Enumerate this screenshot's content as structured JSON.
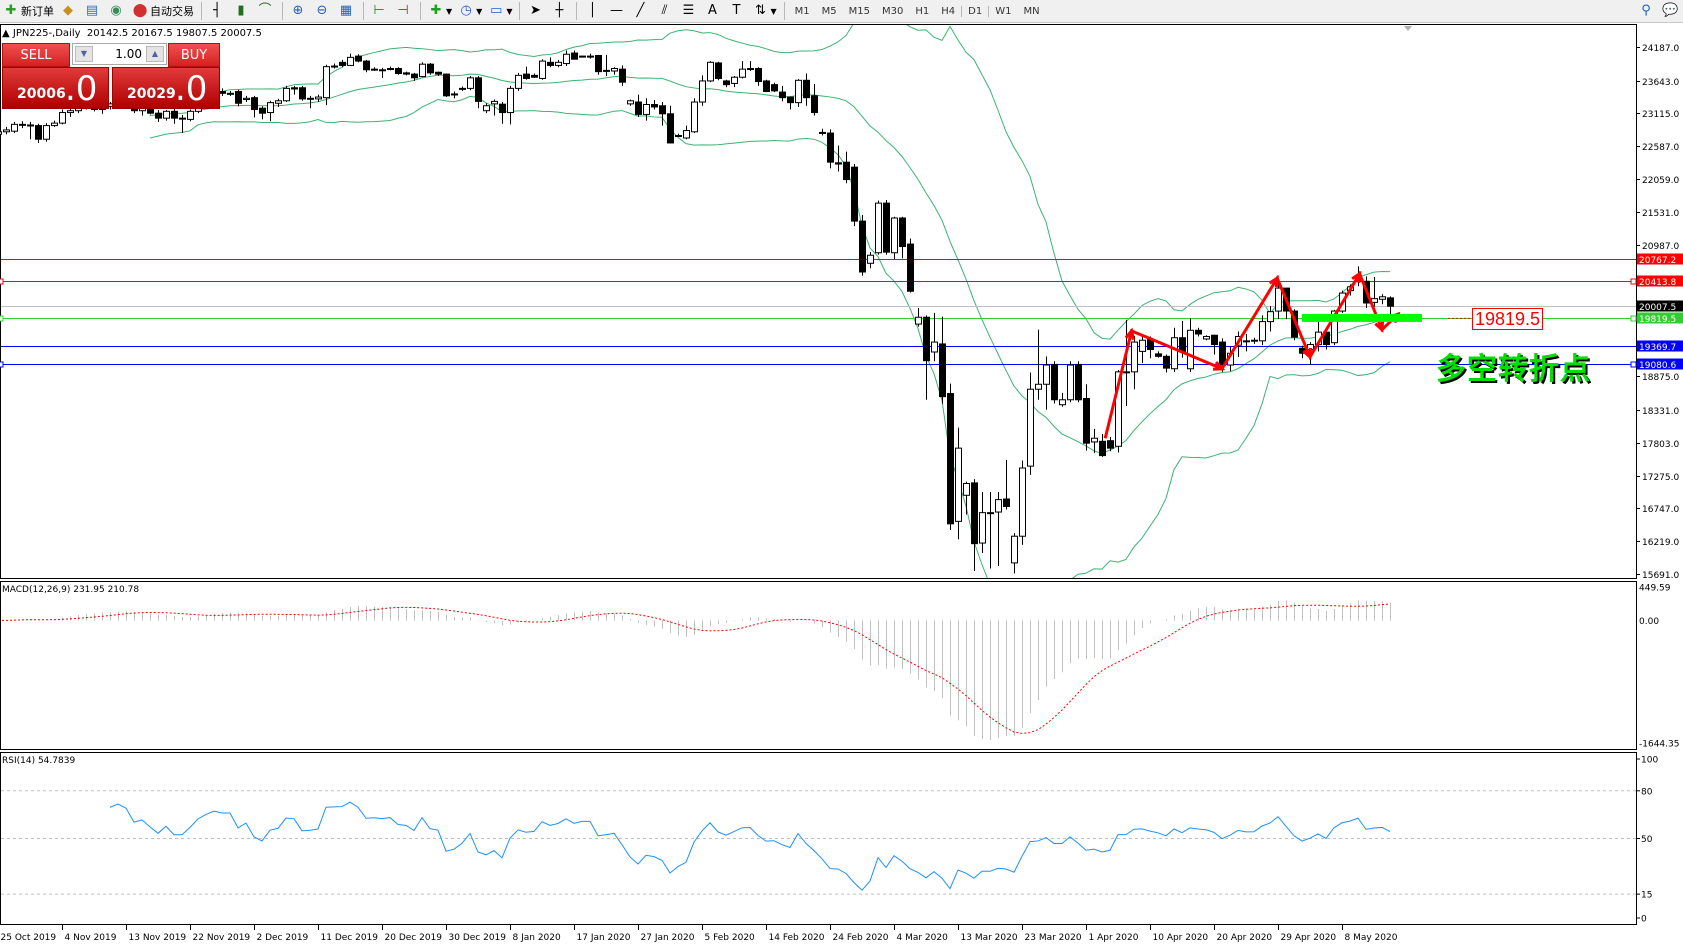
{
  "toolbar": {
    "new_order": "新订单",
    "auto_trading": "自动交易",
    "icons": [
      "new-order-icon",
      "history-icon",
      "market-watch-icon",
      "signals-icon",
      "auto-trading-icon",
      "bar-chart-icon",
      "candlestick-icon",
      "line-chart-icon",
      "zoom-in-icon",
      "zoom-out-icon",
      "tile-windows-icon",
      "chart-shift-icon",
      "autoscroll-icon",
      "indicators-icon",
      "periods-icon",
      "templates-icon",
      "cursor-icon",
      "crosshair-icon",
      "vertical-line-icon",
      "horizontal-line-icon",
      "trendline-icon",
      "equidistant-channel-icon",
      "fibonacci-icon",
      "text-icon",
      "text-label-icon",
      "arrows-icon",
      "search-icon",
      "chat-icon"
    ],
    "timeframes": [
      "M1",
      "M5",
      "M15",
      "M30",
      "H1",
      "H4",
      "D1",
      "W1",
      "MN"
    ],
    "active_timeframe": "D1"
  },
  "chart_header": {
    "symbol": "JPN225-,Daily",
    "ohlc_text": "20142.5 20167.5 19807.5 20007.5"
  },
  "trade_panel": {
    "sell_label": "SELL",
    "buy_label": "BUY",
    "volume": "1.00",
    "sell_price_main": "20006",
    "sell_price_frac": ".0",
    "buy_price_main": "20029",
    "buy_price_frac": ".0",
    "color": "#d42020"
  },
  "annotations": {
    "level_label": "19819.5",
    "text": "多空转折点",
    "zigzag_color": "#ff0000",
    "zone_color": "#00ff00"
  },
  "chart_data": {
    "type": "candlestick",
    "symbol": "JPN225-",
    "timeframe": "Daily",
    "ylim": [
      15691.0,
      24187.0
    ],
    "y_ticks": [
      "24187.0",
      "23643.0",
      "23115.0",
      "22587.0",
      "22059.0",
      "21531.0",
      "20987.0",
      "18875.0",
      "18331.0",
      "17803.0",
      "17275.0",
      "16747.0",
      "16219.0",
      "15691.0"
    ],
    "x_ticks": [
      {
        "label": "25 Oct 2019",
        "bar": 0
      },
      {
        "label": "4 Nov 2019",
        "bar": 8
      },
      {
        "label": "13 Nov 2019",
        "bar": 16
      },
      {
        "label": "22 Nov 2019",
        "bar": 24
      },
      {
        "label": "2 Dec 2019",
        "bar": 32
      },
      {
        "label": "11 Dec 2019",
        "bar": 40
      },
      {
        "label": "20 Dec 2019",
        "bar": 48
      },
      {
        "label": "30 Dec 2019",
        "bar": 56
      },
      {
        "label": "8 Jan 2020",
        "bar": 64
      },
      {
        "label": "17 Jan 2020",
        "bar": 72
      },
      {
        "label": "27 Jan 2020",
        "bar": 80
      },
      {
        "label": "5 Feb 2020",
        "bar": 88
      },
      {
        "label": "14 Feb 2020",
        "bar": 96
      },
      {
        "label": "24 Feb 2020",
        "bar": 104
      },
      {
        "label": "4 Mar 2020",
        "bar": 112
      },
      {
        "label": "13 Mar 2020",
        "bar": 120
      },
      {
        "label": "23 Mar 2020",
        "bar": 128
      },
      {
        "label": "1 Apr 2020",
        "bar": 136
      },
      {
        "label": "10 Apr 2020",
        "bar": 144
      },
      {
        "label": "20 Apr 2020",
        "bar": 152
      },
      {
        "label": "29 Apr 2020",
        "bar": 160
      },
      {
        "label": "8 May 2020",
        "bar": 168
      }
    ],
    "ohlc": [
      [
        22780,
        22860,
        22700,
        22820
      ],
      [
        22820,
        22900,
        22780,
        22850
      ],
      [
        22830,
        22980,
        22800,
        22940
      ],
      [
        22940,
        22990,
        22880,
        22930
      ],
      [
        22930,
        22980,
        22700,
        22920
      ],
      [
        22920,
        22950,
        22640,
        22700
      ],
      [
        22700,
        22960,
        22660,
        22920
      ],
      [
        22920,
        23000,
        22900,
        22960
      ],
      [
        22960,
        23180,
        22940,
        23130
      ],
      [
        23130,
        23200,
        23060,
        23160
      ],
      [
        23160,
        23260,
        23120,
        23220
      ],
      [
        23220,
        23330,
        23180,
        23290
      ],
      [
        23290,
        23340,
        23150,
        23180
      ],
      [
        23180,
        23260,
        23110,
        23230
      ],
      [
        23230,
        23300,
        23180,
        23270
      ],
      [
        23270,
        23380,
        23230,
        23350
      ],
      [
        23350,
        23400,
        23280,
        23310
      ],
      [
        23310,
        23360,
        23120,
        23160
      ],
      [
        23160,
        23230,
        23080,
        23200
      ],
      [
        23200,
        23260,
        23100,
        23120
      ],
      [
        23120,
        23170,
        22980,
        23040
      ],
      [
        23040,
        23170,
        23000,
        23150
      ],
      [
        23150,
        23190,
        22950,
        23040
      ],
      [
        23040,
        23090,
        22800,
        23040
      ],
      [
        23020,
        23180,
        22990,
        23150
      ],
      [
        23150,
        23330,
        23120,
        23300
      ],
      [
        23300,
        23420,
        23260,
        23390
      ],
      [
        23390,
        23500,
        23350,
        23460
      ],
      [
        23470,
        23520,
        23400,
        23440
      ],
      [
        23440,
        23480,
        23400,
        23440
      ],
      [
        23470,
        23500,
        23230,
        23280
      ],
      [
        23340,
        23400,
        23300,
        23360
      ],
      [
        23370,
        23400,
        23050,
        23180
      ],
      [
        23200,
        23230,
        23020,
        23120
      ],
      [
        23130,
        23320,
        22990,
        23290
      ],
      [
        23280,
        23350,
        23220,
        23320
      ],
      [
        23320,
        23560,
        23300,
        23520
      ],
      [
        23530,
        23560,
        23420,
        23510
      ],
      [
        23530,
        23560,
        23320,
        23350
      ],
      [
        23360,
        23400,
        23200,
        23360
      ],
      [
        23350,
        23420,
        23300,
        23380
      ],
      [
        23370,
        23900,
        23250,
        23870
      ],
      [
        23880,
        23920,
        23840,
        23880
      ],
      [
        23940,
        23980,
        23860,
        23890
      ],
      [
        23890,
        24080,
        23880,
        24020
      ],
      [
        24040,
        24070,
        23940,
        23960
      ],
      [
        23960,
        23980,
        23780,
        23820
      ],
      [
        23830,
        23860,
        23800,
        23830
      ],
      [
        23820,
        23850,
        23690,
        23820
      ],
      [
        23840,
        23870,
        23810,
        23840
      ],
      [
        23840,
        23860,
        23740,
        23760
      ],
      [
        23770,
        23790,
        23730,
        23750
      ],
      [
        23750,
        23770,
        23640,
        23690
      ],
      [
        23710,
        23940,
        23700,
        23910
      ],
      [
        23910,
        23930,
        23740,
        23770
      ],
      [
        23780,
        23790,
        23720,
        23750
      ],
      [
        23750,
        23760,
        23380,
        23400
      ],
      [
        23430,
        23470,
        23360,
        23430
      ],
      [
        23520,
        23550,
        23480,
        23520
      ],
      [
        23520,
        23720,
        23490,
        23690
      ],
      [
        23690,
        23720,
        23200,
        23310
      ],
      [
        23160,
        23280,
        23120,
        23240
      ],
      [
        23270,
        23340,
        23080,
        23310
      ],
      [
        23265,
        23300,
        22950,
        23130
      ],
      [
        23130,
        23560,
        22940,
        23520
      ],
      [
        23520,
        23770,
        23480,
        23730
      ],
      [
        23750,
        23870,
        23660,
        23680
      ],
      [
        23730,
        23760,
        23690,
        23700
      ],
      [
        23680,
        23990,
        23660,
        23960
      ],
      [
        23940,
        24020,
        23860,
        23890
      ],
      [
        23890,
        23980,
        23860,
        23940
      ],
      [
        23920,
        24130,
        23880,
        24070
      ],
      [
        24090,
        24130,
        23990,
        23990
      ],
      [
        24040,
        24050,
        24030,
        24040
      ],
      [
        24040,
        24080,
        24000,
        24040
      ],
      [
        24050,
        24060,
        23740,
        23790
      ],
      [
        23810,
        24060,
        23720,
        23810
      ],
      [
        23800,
        23860,
        23740,
        23840
      ],
      [
        23830,
        23890,
        23560,
        23620
      ],
      [
        23270,
        23340,
        23240,
        23320
      ],
      [
        23300,
        23420,
        23060,
        23100
      ],
      [
        23100,
        23360,
        23000,
        23260
      ],
      [
        23260,
        23330,
        23180,
        23220
      ],
      [
        23240,
        23300,
        22920,
        23110
      ],
      [
        23110,
        23240,
        22640,
        22640
      ],
      [
        22760,
        22790,
        22740,
        22760
      ],
      [
        22720,
        22920,
        22700,
        22840
      ],
      [
        22820,
        23360,
        22800,
        23300
      ],
      [
        23300,
        23730,
        23240,
        23640
      ],
      [
        23640,
        23960,
        23620,
        23940
      ],
      [
        23930,
        23950,
        23650,
        23680
      ],
      [
        23640,
        23660,
        23540,
        23580
      ],
      [
        23600,
        23720,
        23540,
        23700
      ],
      [
        23700,
        23960,
        23680,
        23830
      ],
      [
        23840,
        23960,
        23800,
        23840
      ],
      [
        23840,
        23860,
        23560,
        23630
      ],
      [
        23640,
        23660,
        23460,
        23470
      ],
      [
        23580,
        23610,
        23460,
        23480
      ],
      [
        23460,
        23560,
        23310,
        23370
      ],
      [
        23380,
        23390,
        23180,
        23290
      ],
      [
        23290,
        23670,
        23220,
        23650
      ],
      [
        23650,
        23760,
        23240,
        23370
      ],
      [
        23400,
        23590,
        23080,
        23130
      ],
      [
        22810,
        22870,
        22760,
        22810
      ],
      [
        22800,
        22860,
        22230,
        22330
      ],
      [
        22320,
        22600,
        22180,
        22300
      ],
      [
        22330,
        22500,
        21990,
        22050
      ],
      [
        22250,
        22300,
        21300,
        21380
      ],
      [
        21380,
        21480,
        20500,
        20560
      ],
      [
        20700,
        20880,
        20620,
        20830
      ],
      [
        20870,
        21710,
        20840,
        21670
      ],
      [
        21670,
        21720,
        20840,
        20880
      ],
      [
        20870,
        21450,
        20770,
        21430
      ],
      [
        21430,
        21450,
        20780,
        20970
      ],
      [
        21010,
        21100,
        20230,
        20250
      ],
      [
        19720,
        19980,
        19680,
        19830
      ],
      [
        19830,
        19860,
        18500,
        19130
      ],
      [
        19270,
        19900,
        19120,
        19430
      ],
      [
        19400,
        19840,
        18440,
        18550
      ],
      [
        18600,
        18760,
        16400,
        16500
      ],
      [
        16540,
        18050,
        16250,
        17720
      ],
      [
        16960,
        17180,
        16650,
        17150
      ],
      [
        17160,
        17220,
        15740,
        16180
      ],
      [
        16190,
        17010,
        16030,
        16680
      ],
      [
        16680,
        17010,
        15780,
        16680
      ],
      [
        16690,
        17010,
        15820,
        16890
      ],
      [
        16900,
        17530,
        16730,
        16780
      ],
      [
        15870,
        16350,
        15700,
        16300
      ],
      [
        16300,
        17520,
        16160,
        17400
      ],
      [
        17430,
        18940,
        17290,
        18670
      ],
      [
        18670,
        19630,
        18500,
        18750
      ],
      [
        18750,
        19200,
        18340,
        19060
      ],
      [
        19070,
        19120,
        18440,
        18500
      ],
      [
        18420,
        18610,
        18390,
        18500
      ],
      [
        18500,
        19120,
        18460,
        19060
      ],
      [
        19070,
        19120,
        18460,
        18500
      ],
      [
        18520,
        18750,
        17680,
        17800
      ],
      [
        17820,
        18030,
        17640,
        17880
      ],
      [
        17830,
        17950,
        17580,
        17600
      ],
      [
        17840,
        17900,
        17670,
        17720
      ],
      [
        17750,
        18980,
        17650,
        18950
      ],
      [
        18950,
        19790,
        18400,
        18950
      ],
      [
        18950,
        19530,
        18670,
        19430
      ],
      [
        19280,
        19520,
        19090,
        19460
      ],
      [
        19470,
        19520,
        19170,
        19310
      ],
      [
        19240,
        19280,
        19180,
        19200
      ],
      [
        19200,
        19230,
        18940,
        19010
      ],
      [
        19000,
        19660,
        18950,
        19500
      ],
      [
        19500,
        19770,
        19180,
        19280
      ],
      [
        19000,
        19810,
        18950,
        19620
      ],
      [
        19620,
        19660,
        19520,
        19560
      ],
      [
        19480,
        19540,
        19460,
        19520
      ],
      [
        19540,
        19550,
        19230,
        19390
      ],
      [
        19430,
        19490,
        18950,
        19060
      ],
      [
        19060,
        19350,
        18960,
        19250
      ],
      [
        19380,
        19600,
        19190,
        19520
      ],
      [
        19450,
        19560,
        19280,
        19450
      ],
      [
        19460,
        19500,
        19400,
        19460
      ],
      [
        19450,
        19860,
        19380,
        19760
      ],
      [
        19760,
        20010,
        19600,
        19920
      ],
      [
        19930,
        20420,
        19800,
        20300
      ],
      [
        20300,
        20300,
        19800,
        19930
      ],
      [
        19930,
        19960,
        19460,
        19510
      ],
      [
        19330,
        19370,
        19170,
        19250
      ],
      [
        19310,
        19430,
        19060,
        19390
      ],
      [
        19390,
        19780,
        19280,
        19590
      ],
      [
        19590,
        19610,
        19310,
        19390
      ],
      [
        19420,
        19950,
        19380,
        19930
      ],
      [
        19930,
        20260,
        19900,
        20220
      ],
      [
        20260,
        20360,
        20180,
        20320
      ],
      [
        20410,
        20650,
        20330,
        20500
      ],
      [
        20410,
        20490,
        19980,
        20060
      ],
      [
        20070,
        20480,
        20000,
        20130
      ],
      [
        20120,
        20200,
        20040,
        20160
      ],
      [
        20142.5,
        20167.5,
        19807.5,
        20007.5
      ]
    ],
    "horizontal_lines": [
      {
        "price": 20767.2,
        "label": "20767.2",
        "color": "#ff0000",
        "markers": false
      },
      {
        "price": 20413.8,
        "label": "20413.8",
        "color": "#ff0000",
        "markers": true
      },
      {
        "price": 20007.5,
        "label": "20007.5",
        "color": "#c0c0c0",
        "label_bg": "#000000",
        "markers": false
      },
      {
        "price": 19819.5,
        "label": "19819.5",
        "color": "#32cd32",
        "markers": true
      },
      {
        "price": 19369.7,
        "label": "19369.7",
        "color": "#0000ff",
        "markers": false
      },
      {
        "price": 19080.6,
        "label": "19080.6",
        "color": "#0000ff",
        "markers": true
      }
    ],
    "bollinger": {
      "period": 20,
      "deviation": 2,
      "color": "#3cb371"
    },
    "zigzag": [
      [
        138.4,
        17880
      ],
      [
        141.7,
        19610
      ],
      [
        153,
        19000
      ],
      [
        159.9,
        20460
      ],
      [
        164,
        19190
      ],
      [
        170.2,
        20530
      ],
      [
        173,
        19630
      ],
      [
        175,
        19880
      ]
    ],
    "support_zone": {
      "price": 19819.5,
      "from_bar": 163,
      "to_bar": 178
    },
    "macd": {
      "label": "MACD(12,26,9) 231.95 210.78",
      "ylim": [
        -1644.35,
        449.59
      ],
      "ticks": [
        "449.59",
        "0.00",
        "-1644.35"
      ],
      "hist_color": "#c0c0c0",
      "signal_color": "#ff0000"
    },
    "rsi": {
      "label": "RSI(14) 54.7839",
      "ylim": [
        0,
        100
      ],
      "levels": [
        80,
        50,
        15
      ],
      "ticks": [
        "100",
        "80",
        "50",
        "15",
        "0"
      ],
      "color": "#1e90ff"
    }
  }
}
